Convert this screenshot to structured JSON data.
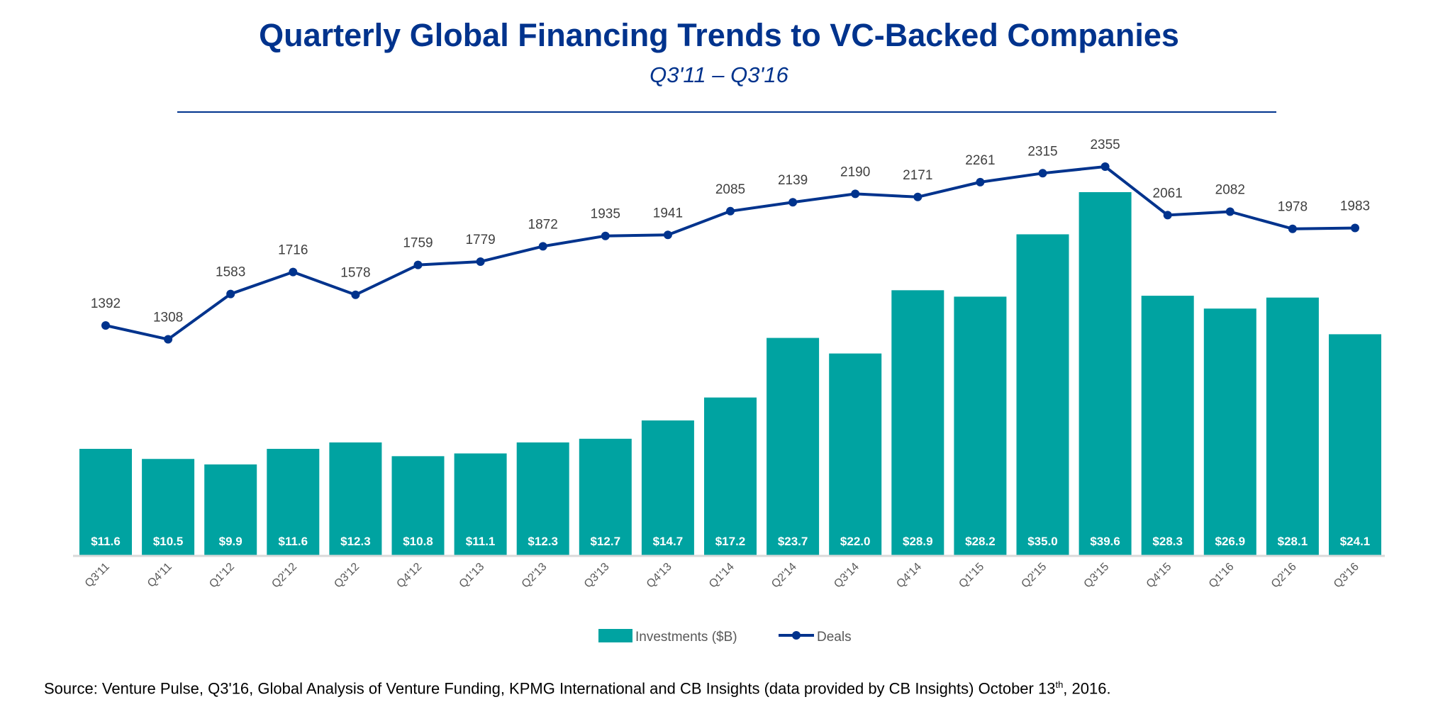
{
  "chart_data": {
    "type": "bar+line",
    "title": "Quarterly Global Financing Trends to VC-Backed Companies",
    "subtitle": "Q3'11 – Q3'16",
    "categories": [
      "Q3'11",
      "Q4'11",
      "Q1'12",
      "Q2'12",
      "Q3'12",
      "Q4'12",
      "Q1'13",
      "Q2'13",
      "Q3'13",
      "Q4'13",
      "Q1'14",
      "Q2'14",
      "Q3'14",
      "Q4'14",
      "Q1'15",
      "Q2'15",
      "Q3'15",
      "Q4'15",
      "Q1'16",
      "Q2'16",
      "Q3'16"
    ],
    "series": [
      {
        "name": "Investments ($B)",
        "type": "bar",
        "color": "#00A3A1",
        "values": [
          11.6,
          10.5,
          9.9,
          11.6,
          12.3,
          10.8,
          11.1,
          12.3,
          12.7,
          14.7,
          17.2,
          23.7,
          22.0,
          28.9,
          28.2,
          35.0,
          39.6,
          28.3,
          26.9,
          28.1,
          24.1
        ],
        "labels": [
          "$11.6",
          "$10.5",
          "$9.9",
          "$11.6",
          "$12.3",
          "$10.8",
          "$11.1",
          "$12.3",
          "$12.7",
          "$14.7",
          "$17.2",
          "$23.7",
          "$22.0",
          "$28.9",
          "$28.2",
          "$35.0",
          "$39.6",
          "$28.3",
          "$26.9",
          "$28.1",
          "$24.1"
        ]
      },
      {
        "name": "Deals",
        "type": "line",
        "color": "#00338D",
        "values": [
          1392,
          1308,
          1583,
          1716,
          1578,
          1759,
          1779,
          1872,
          1935,
          1941,
          2085,
          2139,
          2190,
          2171,
          2261,
          2315,
          2355,
          2061,
          2082,
          1978,
          1983
        ]
      }
    ],
    "legend_placement": "bottom",
    "grid": false
  },
  "source": {
    "prefix": "Source: Venture Pulse, Q3'16, Global Analysis of Venture Funding, KPMG International and CB Insights (data provided by CB Insights) October 13",
    "sup": "th",
    "suffix": ", 2016."
  }
}
